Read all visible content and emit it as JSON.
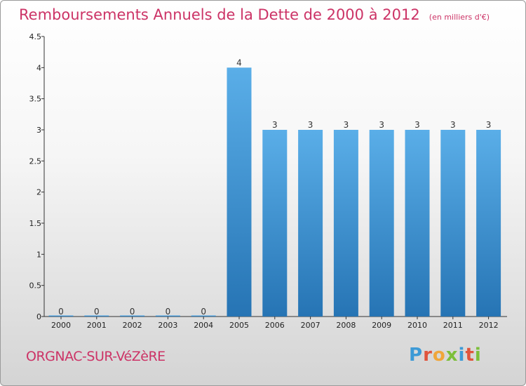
{
  "header": {
    "title": "Remboursements Annuels de la Dette de 2000 à 2012",
    "unit": "(en milliers d'€)"
  },
  "footer": {
    "commune": "ORGNAC-SUR-VéZèRE",
    "logo": "Proxiti",
    "logo_colors": [
      "#3d9ad6",
      "#e0543c",
      "#f0a63a",
      "#7cbf3a",
      "#3d9ad6",
      "#e0543c",
      "#7cbf3a"
    ]
  },
  "chart_data": {
    "type": "bar",
    "title": "Remboursements Annuels de la Dette de 2000 à 2012",
    "subtitle": "(en milliers d'€)",
    "categories": [
      "2000",
      "2001",
      "2002",
      "2003",
      "2004",
      "2005",
      "2006",
      "2007",
      "2008",
      "2009",
      "2010",
      "2011",
      "2012"
    ],
    "values": [
      0,
      0,
      0,
      0,
      0,
      4,
      3,
      3,
      3,
      3,
      3,
      3,
      3
    ],
    "data_labels": [
      "0",
      "0",
      "0",
      "0",
      "0",
      "4",
      "3",
      "3",
      "3",
      "3",
      "3",
      "3",
      "3"
    ],
    "yticks": [
      {
        "value": 0,
        "label": "0"
      },
      {
        "value": 0.5,
        "label": "0.5"
      },
      {
        "value": 1,
        "label": "1"
      },
      {
        "value": 1.5,
        "label": "1.5"
      },
      {
        "value": 2,
        "label": "2"
      },
      {
        "value": 2.5,
        "label": "2.5"
      },
      {
        "value": 3,
        "label": "3"
      },
      {
        "value": 3.5,
        "label": "3.5"
      },
      {
        "value": 4,
        "label": "4"
      },
      {
        "value": 4.5,
        "label": "4.5"
      }
    ],
    "ylim": [
      0,
      4.5
    ],
    "xlabel": "",
    "ylabel": "",
    "grid": false,
    "bar_color": "#4a9ee0",
    "bar_color_dark": "#2a78b8"
  }
}
